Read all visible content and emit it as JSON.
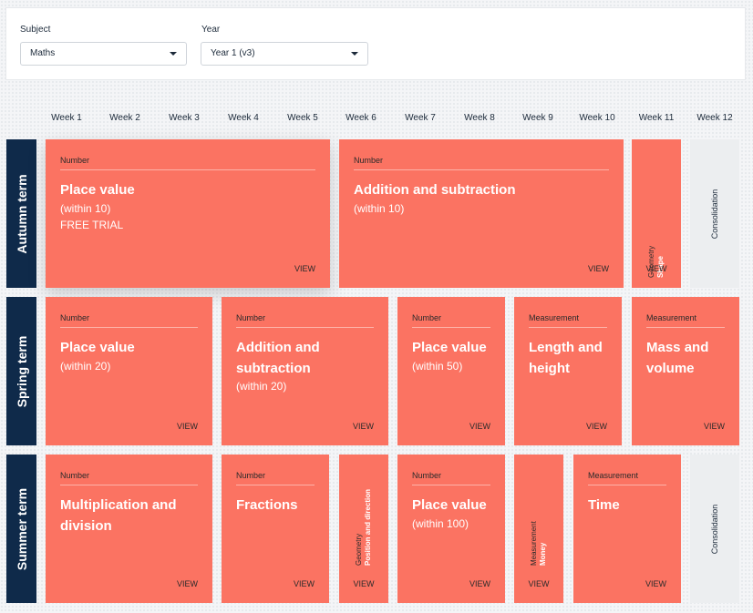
{
  "filters": {
    "subject_label": "Subject",
    "subject_value": "Maths",
    "year_label": "Year",
    "year_value": "Year 1 (v3)"
  },
  "weeks": [
    "Week 1",
    "Week 2",
    "Week 3",
    "Week 4",
    "Week 5",
    "Week 6",
    "Week 7",
    "Week 8",
    "Week 9",
    "Week 10",
    "Week 11",
    "Week 12"
  ],
  "terms": {
    "autumn": {
      "label": "Autumn term",
      "blocks": [
        {
          "category": "Number",
          "title": "Place value",
          "sub": "(within 10)",
          "note": "FREE TRIAL",
          "view": "VIEW"
        },
        {
          "category": "Number",
          "title": "Addition and subtraction",
          "sub": "(within 10)",
          "view": "VIEW"
        },
        {
          "category": "Geometry",
          "title": "Shape",
          "view": "VIEW"
        }
      ],
      "consolidation": "Consolidation"
    },
    "spring": {
      "label": "Spring term",
      "blocks": [
        {
          "category": "Number",
          "title": "Place value",
          "sub": "(within 20)",
          "view": "VIEW"
        },
        {
          "category": "Number",
          "title": "Addition and subtraction",
          "sub": "(within 20)",
          "view": "VIEW"
        },
        {
          "category": "Number",
          "title": "Place value",
          "sub": "(within 50)",
          "view": "VIEW"
        },
        {
          "category": "Measurement",
          "title": "Length and height",
          "view": "VIEW"
        },
        {
          "category": "Measurement",
          "title": "Mass and volume",
          "view": "VIEW"
        }
      ]
    },
    "summer": {
      "label": "Summer term",
      "blocks": [
        {
          "category": "Number",
          "title": "Multiplication and division",
          "view": "VIEW"
        },
        {
          "category": "Number",
          "title": "Fractions",
          "view": "VIEW"
        },
        {
          "category": "Geometry",
          "title": "Position and direction",
          "view": "VIEW"
        },
        {
          "category": "Number",
          "title": "Place value",
          "sub": "(within 100)",
          "view": "VIEW"
        },
        {
          "category": "Measurement",
          "title": "Money",
          "view": "VIEW"
        },
        {
          "category": "Measurement",
          "title": "Time",
          "view": "VIEW"
        }
      ],
      "consolidation": "Consolidation"
    }
  },
  "colors": {
    "block": "#fb7362",
    "term_bar": "#0f2a4a",
    "consolidation": "#eceef0"
  }
}
